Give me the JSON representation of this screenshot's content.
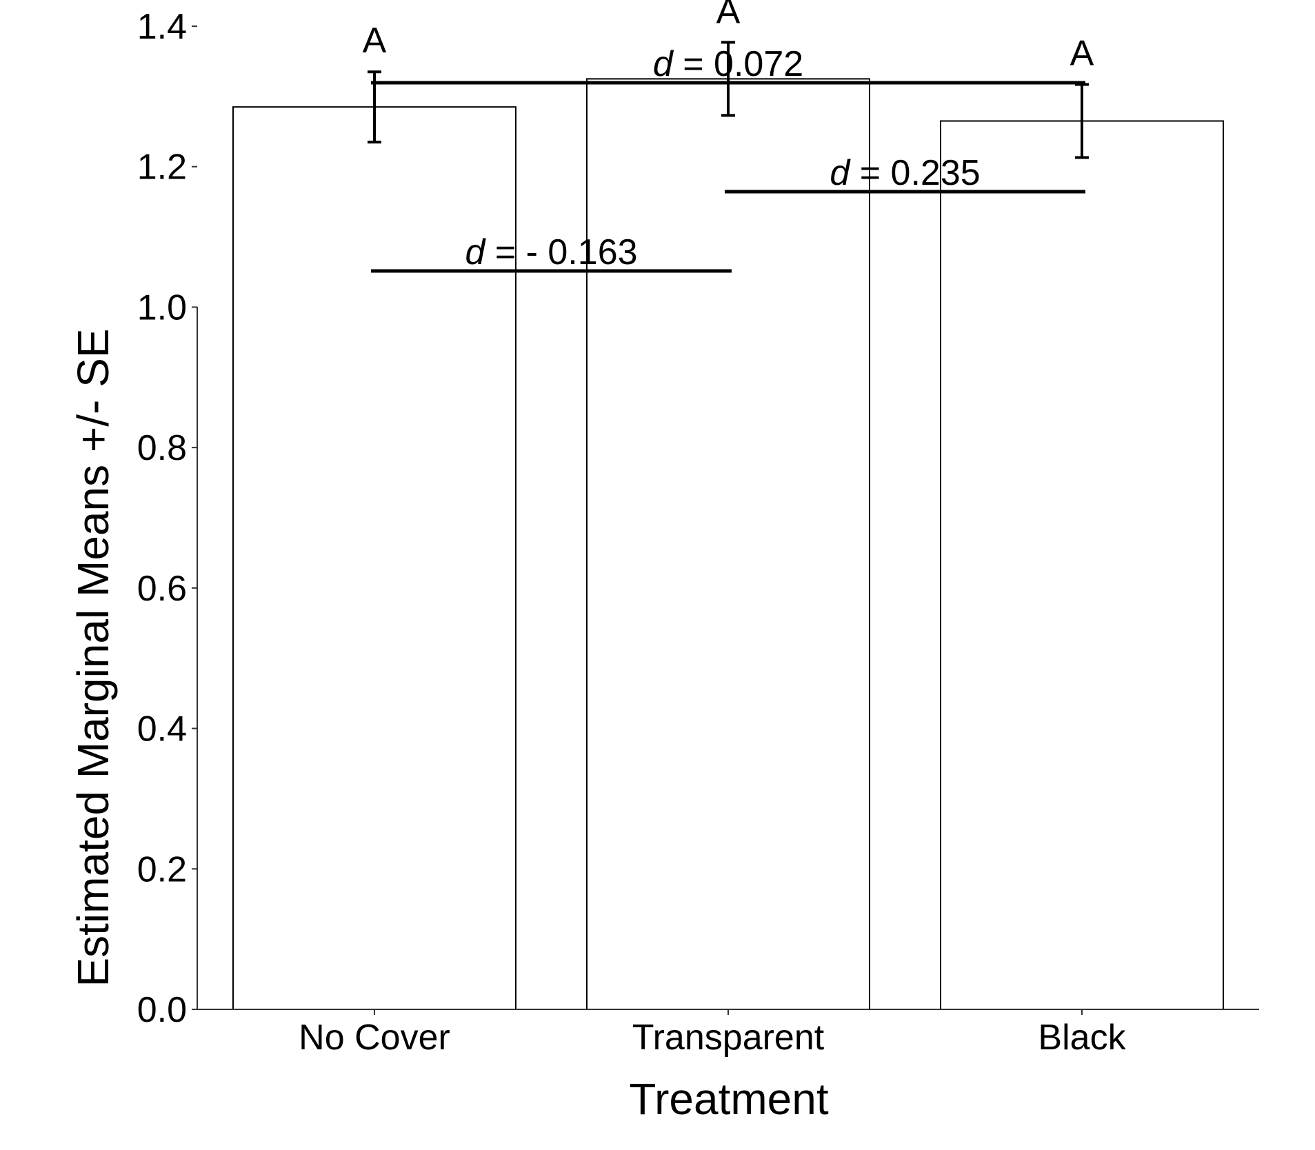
{
  "chart_data": {
    "type": "bar",
    "title": "",
    "xlabel": "Treatment",
    "ylabel": "Estimated Marginal Means +/- SE",
    "categories": [
      "No Cover",
      "Transparent",
      "Black"
    ],
    "values": [
      1.285,
      1.325,
      1.265
    ],
    "errors": [
      0.05,
      0.052,
      0.052
    ],
    "group_letters": [
      "A",
      "A",
      "A"
    ],
    "ylim": [
      0,
      1.45
    ],
    "yticks": [
      0.0,
      0.2,
      0.4,
      0.6,
      0.8,
      1.0,
      1.2,
      1.4
    ],
    "ytick_labels": [
      "0.0",
      "0.2",
      "0.4",
      "0.6",
      "0.8",
      "1.0",
      "1.2",
      "1.4"
    ],
    "grid": false,
    "legend": "none",
    "bar_fill": "#ffffff",
    "bar_stroke": "#000000",
    "comparisons": [
      {
        "from": 0,
        "to": 1,
        "prefix": "d",
        "text": " = - 0.163"
      },
      {
        "from": 1,
        "to": 2,
        "prefix": "d",
        "text": " = 0.235"
      },
      {
        "from": 0,
        "to": 2,
        "prefix": "d",
        "text": " = 0.072"
      }
    ]
  }
}
